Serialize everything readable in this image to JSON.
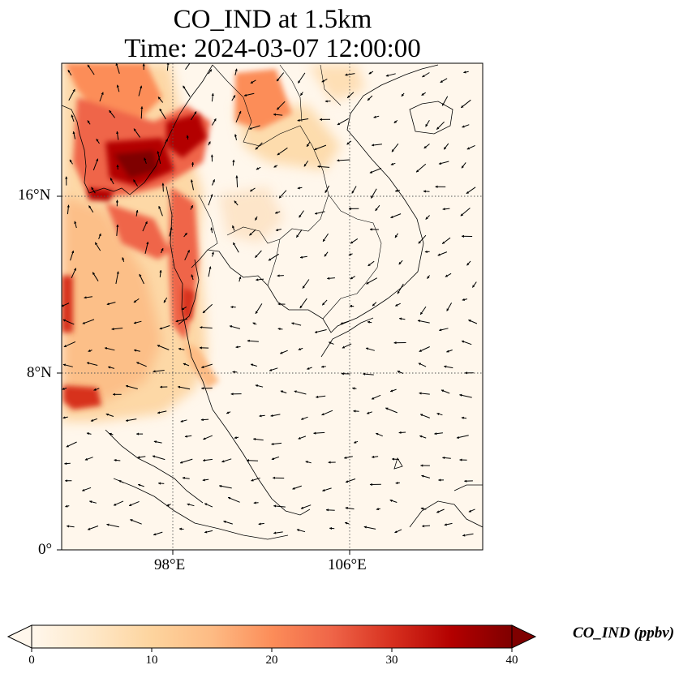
{
  "title": {
    "line1": "CO_IND at 1.5km",
    "line2": "Time: 2024-03-07 12:00:00"
  },
  "map": {
    "lat_labels": [
      "16°N",
      "8°N",
      "0°"
    ],
    "lon_labels": [
      "98°E",
      "106°E"
    ],
    "lat_range": [
      0,
      22
    ],
    "lon_range": [
      93,
      112
    ],
    "gridlines": {
      "lats": [
        16,
        8
      ],
      "lons": [
        98,
        106
      ],
      "style": "dotted"
    }
  },
  "colorbar": {
    "label": "CO_IND (ppbv)",
    "ticks": [
      "0",
      "10",
      "20",
      "30",
      "40"
    ],
    "min": 0,
    "max": 40,
    "extend": "both",
    "colormap": "OrRd",
    "colors": [
      "#fff7ec",
      "#fee8c8",
      "#fdd49e",
      "#fdbb84",
      "#fc8d59",
      "#ef6548",
      "#d7301f",
      "#b30000",
      "#7f0000"
    ]
  }
}
